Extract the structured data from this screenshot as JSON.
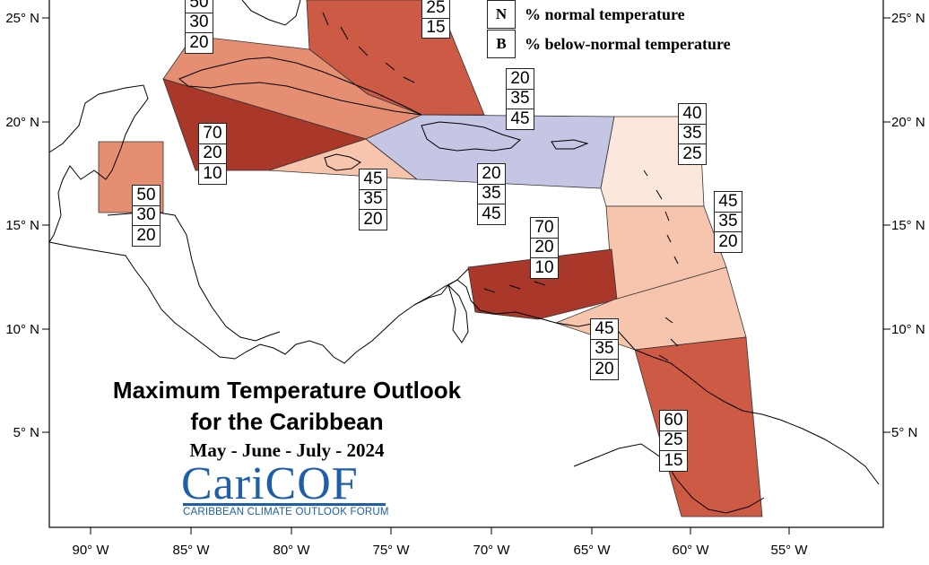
{
  "title": {
    "line1": "Maximum Temperature Outlook",
    "line2": "for the Caribbean",
    "period": "May - June - July - 2024"
  },
  "logo": {
    "name": "CariCOF",
    "tagline": "CARIBBEAN CLIMATE OUTLOOK FORUM"
  },
  "legend": [
    {
      "key": "N",
      "text": "% normal temperature"
    },
    {
      "key": "B",
      "text": "% below-normal temperature"
    }
  ],
  "lat_labels": [
    "25° N",
    "20° N",
    "15° N",
    "10° N",
    "5° N"
  ],
  "lon_labels": [
    "90° W",
    "85° W",
    "80° W",
    "75° W",
    "70° W",
    "65° W",
    "60° W",
    "55° W"
  ],
  "colors": {
    "above_70": "#a9372a",
    "above_60": "#cd5a44",
    "above_50": "#e58e72",
    "above_45": "#f7c4ad",
    "above_40": "#fbe7dc",
    "below_45": "#c4c6e4"
  },
  "probability_boxes": [
    {
      "id": "bahamas-east",
      "values": [
        "25",
        "15"
      ]
    },
    {
      "id": "cuba",
      "values": [
        "50",
        "30",
        "20"
      ]
    },
    {
      "id": "western-cuba",
      "values": [
        "70",
        "20",
        "10"
      ]
    },
    {
      "id": "belize",
      "values": [
        "50",
        "30",
        "20"
      ]
    },
    {
      "id": "jamaica",
      "values": [
        "45",
        "35",
        "20"
      ]
    },
    {
      "id": "turks-caicos",
      "values": [
        "20",
        "35",
        "45"
      ]
    },
    {
      "id": "hispaniola-south",
      "values": [
        "20",
        "35",
        "45"
      ]
    },
    {
      "id": "leeward-north",
      "values": [
        "40",
        "35",
        "25"
      ]
    },
    {
      "id": "leeward-south",
      "values": [
        "45",
        "35",
        "20"
      ]
    },
    {
      "id": "abc-islands",
      "values": [
        "70",
        "20",
        "10"
      ]
    },
    {
      "id": "trinidad",
      "values": [
        "45",
        "35",
        "20"
      ]
    },
    {
      "id": "guianas",
      "values": [
        "60",
        "25",
        "15"
      ]
    }
  ]
}
